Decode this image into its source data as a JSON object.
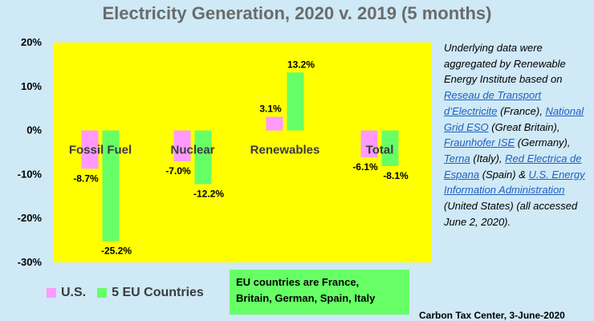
{
  "title": "Electricity Generation, 2020 v. 2019 (5 months)",
  "colors": {
    "background": "#cfe9f7",
    "plot_area": "#ffff00",
    "us": "#ff99ff",
    "eu": "#66ff66",
    "title": "#6b6b6b",
    "link": "#1f5fbf"
  },
  "chart_data": {
    "type": "bar",
    "categories": [
      "Fossil Fuel",
      "Nuclear",
      "Renewables",
      "Total"
    ],
    "series": [
      {
        "name": "U.S.",
        "values": [
          -8.7,
          -7.0,
          3.1,
          -6.1
        ]
      },
      {
        "name": "5 EU Countries",
        "values": [
          -25.2,
          -12.2,
          13.2,
          -8.1
        ]
      }
    ],
    "data_labels": {
      "U.S.": [
        "-8.7%",
        "-7.0%",
        "3.1%",
        "-6.1%"
      ],
      "5 EU Countries": [
        "-25.2%",
        "-12.2%",
        "13.2%",
        "-8.1%"
      ]
    },
    "ylim": [
      -30,
      20
    ],
    "yticks": [
      20,
      10,
      0,
      -10,
      -20,
      -30
    ],
    "ytick_labels": [
      "20%",
      "10%",
      "0%",
      "-10%",
      "-20%",
      "-30%"
    ],
    "grid": false,
    "legend_position": "bottom-left"
  },
  "legend": {
    "us": "U.S.",
    "eu": "5 EU Countries"
  },
  "note": {
    "line1": "EU countries are France,",
    "line2": "Britain, German, Spain, Italy"
  },
  "source": {
    "intro": "Underlying data were aggregated by Renewable Energy Institute based on ",
    "link1": "Reseau de Transport d’Electricite",
    "text1": " (France), ",
    "link2": "National Grid ESO",
    "text2": " (Great Britain), ",
    "link3": "Fraunhofer ISE",
    "text3": " (Germany), ",
    "link4": "Terna",
    "text4": " (Italy), ",
    "link5": "Red Electrica de Espana",
    "text5": " (Spain) & ",
    "link6": "U.S. Energy Information Administration",
    "text6": " (United States) (all accessed June 2, 2020)."
  },
  "credit": "Carbon Tax Center, 3-June-2020"
}
